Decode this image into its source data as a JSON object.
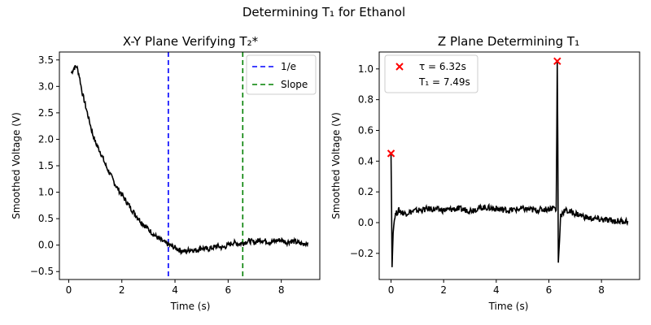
{
  "figure": {
    "title": "Determining T₁ for Ethanol"
  },
  "chart_data": [
    {
      "type": "line",
      "title": "X-Y Plane Verifying T₂*",
      "xlabel": "Time (s)",
      "ylabel": "Smoothed Voltage (V)",
      "xlim": [
        -0.35,
        9.45
      ],
      "ylim": [
        -0.65,
        3.65
      ],
      "xticks": [
        0,
        2,
        4,
        6,
        8
      ],
      "yticks": [
        -0.5,
        0.0,
        0.5,
        1.0,
        1.5,
        2.0,
        2.5,
        3.0,
        3.5
      ],
      "ytick_labels": [
        "−0.5",
        "0.0",
        "0.5",
        "1.0",
        "1.5",
        "2.0",
        "2.5",
        "3.0",
        "3.5"
      ],
      "grid": false,
      "legend": {
        "placement": "upper right",
        "entries": [
          {
            "label": "1/e",
            "color": "#0000ff",
            "style": "dashed"
          },
          {
            "label": "Slope",
            "color": "#008000",
            "style": "dashed"
          }
        ]
      },
      "series": [
        {
          "color": "#000000",
          "x": [
            0.1,
            0.2,
            0.3,
            0.4,
            0.5,
            0.6,
            0.7,
            0.8,
            0.9,
            1.0,
            1.2,
            1.4,
            1.6,
            1.8,
            2.0,
            2.2,
            2.4,
            2.6,
            2.8,
            3.0,
            3.2,
            3.4,
            3.6,
            3.8,
            4.0,
            4.2,
            4.4,
            4.6,
            4.8,
            5.0,
            5.2,
            5.4,
            5.6,
            5.8,
            6.0,
            6.2,
            6.4,
            6.6,
            6.8,
            7.0,
            7.2,
            7.4,
            7.6,
            7.8,
            8.0,
            8.2,
            8.4,
            8.6,
            8.8,
            9.0
          ],
          "y": [
            3.25,
            3.35,
            3.38,
            3.2,
            2.9,
            2.7,
            2.5,
            2.3,
            2.1,
            1.95,
            1.75,
            1.5,
            1.3,
            1.1,
            0.95,
            0.8,
            0.65,
            0.52,
            0.4,
            0.3,
            0.2,
            0.12,
            0.05,
            0.0,
            -0.05,
            -0.1,
            -0.12,
            -0.08,
            -0.1,
            -0.05,
            -0.08,
            -0.05,
            -0.02,
            -0.05,
            0.0,
            0.05,
            0.02,
            0.05,
            0.08,
            0.05,
            0.1,
            0.08,
            0.05,
            0.08,
            0.1,
            0.05,
            0.08,
            0.05,
            0.02,
            0.05
          ]
        }
      ],
      "vlines": [
        {
          "x": 3.75,
          "color": "#0000ff",
          "style": "dashed"
        },
        {
          "x": 6.55,
          "color": "#008000",
          "style": "dashed"
        }
      ]
    },
    {
      "type": "line",
      "title": "Z Plane Determining T₁",
      "xlabel": "Time (s)",
      "ylabel": "Smoothed Voltage (V)",
      "xlim": [
        -0.45,
        9.45
      ],
      "ylim": [
        -0.37,
        1.11
      ],
      "xticks": [
        0,
        2,
        4,
        6,
        8
      ],
      "yticks": [
        -0.2,
        0.0,
        0.2,
        0.4,
        0.6,
        0.8,
        1.0
      ],
      "ytick_labels": [
        "−0.2",
        "0.0",
        "0.2",
        "0.4",
        "0.6",
        "0.8",
        "1.0"
      ],
      "grid": false,
      "legend": {
        "placement": "upper left",
        "entries": [
          {
            "label": "τ = 6.32s",
            "color": "#ff0000",
            "marker": "x"
          },
          {
            "label": "T₁ = 7.49s",
            "color": null
          }
        ]
      },
      "series": [
        {
          "color": "#000000",
          "x": [
            0.0,
            0.02,
            0.04,
            0.08,
            0.15,
            0.3,
            0.5,
            1.0,
            1.5,
            2.0,
            2.5,
            3.0,
            3.5,
            4.0,
            4.5,
            5.0,
            5.5,
            6.0,
            6.2,
            6.28,
            6.32,
            6.34,
            6.36,
            6.45,
            6.6,
            7.0,
            7.5,
            8.0,
            8.5,
            9.0
          ],
          "y": [
            0.45,
            0.1,
            -0.29,
            -0.05,
            0.05,
            0.08,
            0.06,
            0.08,
            0.09,
            0.08,
            0.09,
            0.08,
            0.1,
            0.09,
            0.08,
            0.09,
            0.08,
            0.09,
            0.1,
            0.08,
            1.05,
            0.5,
            -0.27,
            0.05,
            0.08,
            0.06,
            0.03,
            0.02,
            0.01,
            0.01
          ]
        }
      ],
      "markers": [
        {
          "x": 0.0,
          "y": 0.45,
          "color": "#ff0000",
          "symbol": "x"
        },
        {
          "x": 6.32,
          "y": 1.05,
          "color": "#ff0000",
          "symbol": "x"
        }
      ]
    }
  ]
}
